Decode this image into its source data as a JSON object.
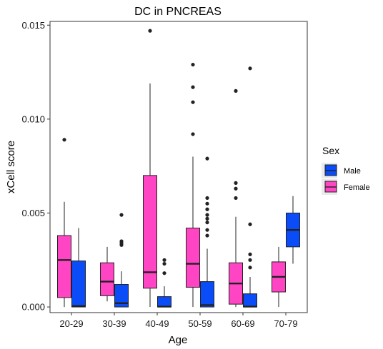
{
  "chart_data": {
    "type": "boxplot",
    "title": "DC in PNCREAS",
    "xlabel": "Age",
    "ylabel": "xCell score",
    "ylim": [
      -0.0003,
      0.0152
    ],
    "yticks": [
      {
        "value": 0.0,
        "label": "0.000"
      },
      {
        "value": 0.005,
        "label": "0.005"
      },
      {
        "value": 0.01,
        "label": "0.010"
      },
      {
        "value": 0.015,
        "label": "0.015"
      }
    ],
    "categories": [
      "20-29",
      "30-39",
      "40-49",
      "50-59",
      "60-69",
      "70-79"
    ],
    "grid": false,
    "legend": {
      "title": "Sex",
      "placement": "right",
      "items": [
        {
          "label": "Male",
          "color": "#0a4cf7"
        },
        {
          "label": "Female",
          "color": "#ff45c4"
        }
      ]
    },
    "series": [
      {
        "name": "Female",
        "color": "#ff45c4",
        "boxes": [
          {
            "category": "20-29",
            "whisker_low": 0.0,
            "q1": 0.0005,
            "median": 0.0025,
            "q3": 0.0038,
            "whisker_high": 0.0056,
            "outliers": [
              0.0089
            ]
          },
          {
            "category": "30-39",
            "whisker_low": 0.0003,
            "q1": 0.0006,
            "median": 0.00135,
            "q3": 0.00235,
            "whisker_high": 0.0032,
            "outliers": []
          },
          {
            "category": "40-49",
            "whisker_low": 0.0,
            "q1": 0.001,
            "median": 0.00185,
            "q3": 0.007,
            "whisker_high": 0.0119,
            "outliers": [
              0.0147
            ]
          },
          {
            "category": "50-59",
            "whisker_low": 0.0,
            "q1": 0.00105,
            "median": 0.0023,
            "q3": 0.0042,
            "whisker_high": 0.008,
            "outliers": [
              0.0092,
              0.0109,
              0.0117,
              0.0129
            ]
          },
          {
            "category": "60-69",
            "whisker_low": 0.0,
            "q1": 0.00015,
            "median": 0.00125,
            "q3": 0.00235,
            "whisker_high": 0.0048,
            "outliers": [
              0.0058,
              0.0063,
              0.0066,
              0.0115
            ]
          },
          {
            "category": "70-79",
            "whisker_low": 0.0,
            "q1": 0.0008,
            "median": 0.0016,
            "q3": 0.0024,
            "whisker_high": 0.0032,
            "outliers": []
          }
        ]
      },
      {
        "name": "Male",
        "color": "#0a4cf7",
        "boxes": [
          {
            "category": "20-29",
            "whisker_low": 0.0,
            "q1": 0.0,
            "median": 5e-05,
            "q3": 0.00245,
            "whisker_high": 0.0042,
            "outliers": []
          },
          {
            "category": "30-39",
            "whisker_low": 0.0,
            "q1": 0.0,
            "median": 0.0002,
            "q3": 0.0012,
            "whisker_high": 0.0019,
            "outliers": [
              0.0033,
              0.0034,
              0.0035,
              0.0049
            ]
          },
          {
            "category": "40-49",
            "whisker_low": 0.0,
            "q1": 0.0,
            "median": 2e-05,
            "q3": 0.00055,
            "whisker_high": 0.0011,
            "outliers": [
              0.0018,
              0.0023,
              0.0025
            ]
          },
          {
            "category": "50-59",
            "whisker_low": 0.0,
            "q1": 0.0,
            "median": 0.0001,
            "q3": 0.00135,
            "whisker_high": 0.0031,
            "outliers": [
              0.0038,
              0.0041,
              0.0045,
              0.0047,
              0.0049,
              0.0052,
              0.0055,
              0.0058,
              0.0079
            ]
          },
          {
            "category": "60-69",
            "whisker_low": 0.0,
            "q1": 0.0,
            "median": 2e-05,
            "q3": 0.0007,
            "whisker_high": 0.0016,
            "outliers": [
              0.0021,
              0.0025,
              0.0028,
              0.0044,
              0.0127
            ]
          },
          {
            "category": "70-79",
            "whisker_low": 0.0023,
            "q1": 0.0032,
            "median": 0.0041,
            "q3": 0.005,
            "whisker_high": 0.0059,
            "outliers": []
          }
        ]
      }
    ]
  }
}
